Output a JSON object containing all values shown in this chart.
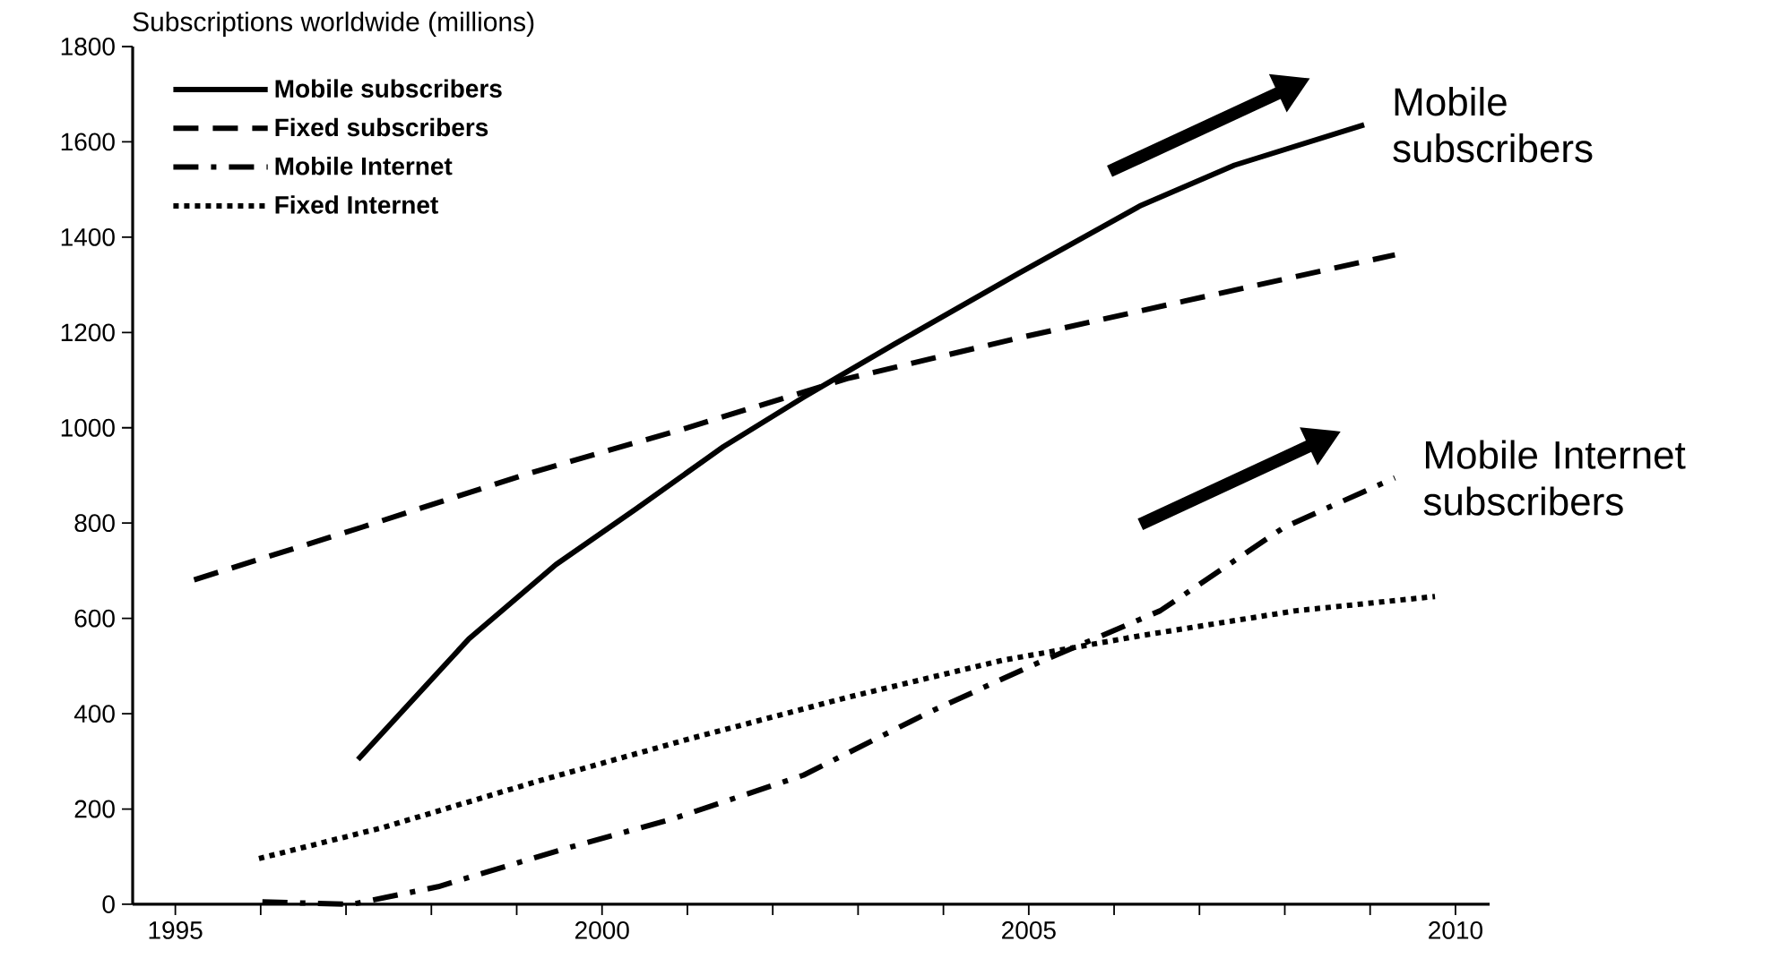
{
  "chart_data": {
    "type": "line",
    "ylabel": "Subscriptions worldwide (millions)",
    "xlim": [
      1994.5,
      2010.4
    ],
    "ylim": [
      0,
      1800
    ],
    "xticks": [
      1995,
      {
        "value": 1996,
        "label": null
      },
      {
        "value": 1997,
        "label": null
      },
      {
        "value": 1998,
        "label": null
      },
      {
        "value": 1999,
        "label": null
      },
      2000,
      {
        "value": 2001,
        "label": null
      },
      {
        "value": 2002,
        "label": null
      },
      {
        "value": 2003,
        "label": null
      },
      {
        "value": 2004,
        "label": null
      },
      2005,
      {
        "value": 2006,
        "label": null
      },
      {
        "value": 2007,
        "label": null
      },
      {
        "value": 2008,
        "label": null
      },
      {
        "value": 2009,
        "label": null
      },
      2010
    ],
    "yticks": [
      0,
      200,
      400,
      600,
      800,
      1000,
      1200,
      1400,
      1600,
      1800
    ],
    "grid": false,
    "legend": "top left",
    "marker": "none",
    "series": [
      {
        "name": "Mobile subscribers",
        "color": "#000000",
        "line_style": "solid",
        "x": [
          1997.14,
          1998.44,
          1999.46,
          2000.4,
          2001.42,
          2002.36,
          2003.42,
          2004.88,
          2006.32,
          2007.41,
          2008.93
        ],
        "values": [
          304,
          557,
          713,
          830,
          960,
          1064,
          1175,
          1324,
          1467,
          1551,
          1636
        ]
      },
      {
        "name": "Fixed subscribers",
        "color": "#000000",
        "line_style": "dashed",
        "x": [
          1995.22,
          1997.18,
          1999.1,
          2000.98,
          2002.87,
          2004.87,
          2006.83,
          2009.29
        ],
        "values": [
          681,
          791,
          902,
          999,
          1103,
          1188,
          1266,
          1363
        ]
      },
      {
        "name": "Mobile Internet",
        "color": "#000000",
        "line_style": "dashdot",
        "x": [
          1996.02,
          1997.07,
          1998.08,
          1999.53,
          2000.84,
          2002.36,
          2003.81,
          2005.01,
          2006.54,
          2007.99,
          2009.29
        ],
        "values": [
          5,
          0,
          37,
          115,
          180,
          271,
          401,
          499,
          616,
          791,
          895
        ]
      },
      {
        "name": "Fixed Internet",
        "color": "#000000",
        "line_style": "dotted",
        "x": [
          1995.98,
          1997.43,
          1999.24,
          2001.06,
          2002.87,
          2004.69,
          2006.32,
          2008.13,
          2009.76
        ],
        "values": [
          96,
          161,
          258,
          349,
          434,
          512,
          564,
          616,
          646
        ]
      }
    ],
    "annotations": [
      {
        "text": "Mobile subscribers",
        "x": 2008.93,
        "y": 1636
      },
      {
        "text": "Mobile Internet subscribers",
        "x": 2009.29,
        "y": 895
      }
    ]
  }
}
